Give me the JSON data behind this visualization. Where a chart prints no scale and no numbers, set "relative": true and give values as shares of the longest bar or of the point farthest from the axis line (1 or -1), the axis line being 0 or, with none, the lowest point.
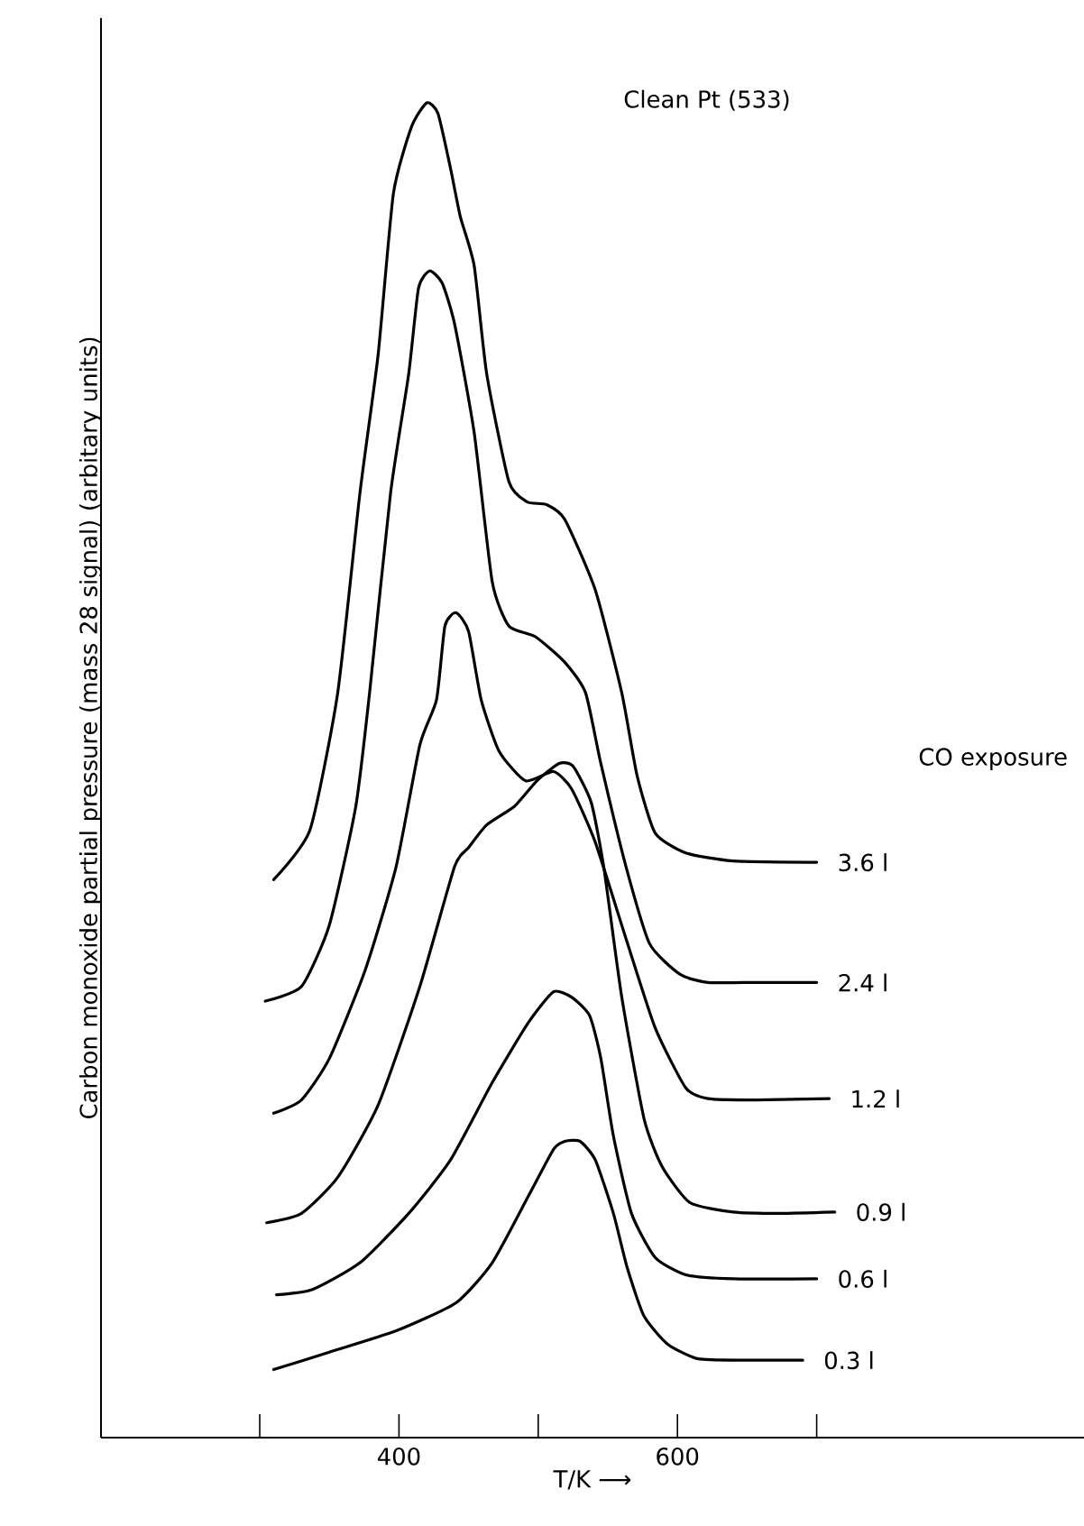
{
  "chart_data": {
    "type": "line",
    "title": "Clean Pt (533)",
    "xlabel": "T/K ⟶",
    "ylabel": "Carbon monoxide partial pressure (mass 28 signal) (arbitary units)",
    "legend_title": "CO exposure",
    "relative": true,
    "xlim": [
      186,
      892
    ],
    "xticks": [
      {
        "value": 300,
        "label": null
      },
      400,
      {
        "value": 500,
        "label": null
      },
      600,
      {
        "value": 700,
        "label": null
      }
    ],
    "series": [
      {
        "name": "3.6 l",
        "color": "#000000",
        "x": [
          310,
          336,
          356,
          372,
          385,
          396,
          409,
          420,
          428,
          437,
          444,
          454,
          463,
          479,
          492,
          506,
          519,
          541,
          560,
          571,
          584,
          606,
          640,
          700
        ],
        "values": [
          0.418,
          0.455,
          0.558,
          0.708,
          0.811,
          0.932,
          0.982,
          1.0,
          0.992,
          0.951,
          0.915,
          0.878,
          0.797,
          0.716,
          0.701,
          0.699,
          0.688,
          0.635,
          0.558,
          0.496,
          0.453,
          0.438,
          0.432,
          0.431
        ]
      },
      {
        "name": "2.4 l",
        "color": "#000000",
        "x": [
          304,
          330,
          350,
          369,
          379,
          394,
          407,
          414,
          422,
          431,
          440,
          454,
          467,
          479,
          498,
          519,
          534,
          545,
          563,
          580,
          602,
          622,
          657,
          700
        ],
        "values": [
          0.327,
          0.338,
          0.384,
          0.473,
          0.559,
          0.708,
          0.797,
          0.861,
          0.874,
          0.865,
          0.834,
          0.753,
          0.641,
          0.608,
          0.6,
          0.581,
          0.558,
          0.505,
          0.428,
          0.37,
          0.347,
          0.341,
          0.341,
          0.341
        ]
      },
      {
        "name": "1.2 l",
        "color": "#000000",
        "x": [
          310,
          330,
          350,
          376,
          398,
          415,
          427,
          433,
          441,
          450,
          459,
          472,
          491,
          511,
          524,
          541,
          563,
          584,
          606,
          622,
          657,
          709
        ],
        "values": [
          0.243,
          0.253,
          0.284,
          0.351,
          0.428,
          0.519,
          0.553,
          0.608,
          0.618,
          0.604,
          0.553,
          0.514,
          0.492,
          0.499,
          0.486,
          0.446,
          0.374,
          0.307,
          0.262,
          0.254,
          0.253,
          0.254
        ]
      },
      {
        "name": "0.9 l",
        "color": "#000000",
        "x": [
          305,
          330,
          356,
          385,
          415,
          440,
          450,
          463,
          483,
          499,
          515,
          525,
          538,
          547,
          560,
          576,
          589,
          609,
          640,
          674,
          713
        ],
        "values": [
          0.161,
          0.168,
          0.195,
          0.249,
          0.338,
          0.428,
          0.442,
          0.459,
          0.473,
          0.492,
          0.505,
          0.503,
          0.476,
          0.428,
          0.33,
          0.239,
          0.203,
          0.176,
          0.169,
          0.168,
          0.169
        ]
      },
      {
        "name": "0.6 l",
        "color": "#000000",
        "x": [
          312,
          338,
          372,
          407,
          437,
          467,
          493,
          511,
          524,
          537,
          545,
          554,
          567,
          584,
          606,
          640,
          700
        ],
        "values": [
          0.107,
          0.111,
          0.131,
          0.168,
          0.208,
          0.266,
          0.311,
          0.334,
          0.33,
          0.316,
          0.284,
          0.226,
          0.168,
          0.135,
          0.122,
          0.119,
          0.119
        ]
      },
      {
        "name": "0.3 l",
        "color": "#000000",
        "x": [
          310,
          350,
          398,
          441,
          467,
          493,
          511,
          519,
          530,
          541,
          554,
          564,
          576,
          593,
          615,
          648,
          690
        ],
        "values": [
          0.051,
          0.064,
          0.08,
          0.101,
          0.131,
          0.181,
          0.216,
          0.222,
          0.222,
          0.208,
          0.168,
          0.127,
          0.091,
          0.07,
          0.059,
          0.058,
          0.058
        ]
      }
    ]
  }
}
